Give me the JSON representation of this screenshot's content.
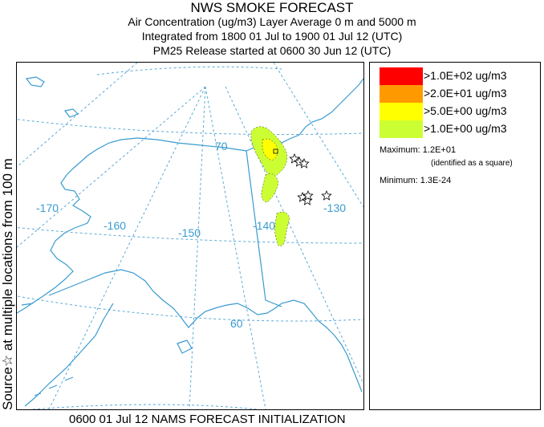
{
  "header": {
    "title": "NWS SMOKE FORECAST",
    "line1": "Air Concentration (ug/m3) Layer Average    0 m and  5000 m",
    "line2": "Integrated from 1800 01 Jul to 1900 01 Jul 12 (UTC)",
    "line3": "PM25 Release started at 0600 30 Jun 12 (UTC)"
  },
  "side_label": "Source☆   at multiple locations     from   100 m",
  "footer": "0600 01 Jul 12 NAMS FORECAST INITIALIZATION",
  "map": {
    "lon_labels": [
      "-170",
      "-160",
      "-150",
      "-140",
      "-130"
    ],
    "lat_labels": [
      "70",
      "60"
    ],
    "colors": {
      "coast": "#3a9bcf",
      "grid": "#5aaad8",
      "border": "#3a9bcf"
    },
    "source_icon": "star-outline-icon",
    "max_marker_icon": "square-icon"
  },
  "legend": {
    "items": [
      {
        "label": ">1.0E+02 ug/m3",
        "color": "#ff0000"
      },
      {
        "label": ">2.0E+01 ug/m3",
        "color": "#ff9900"
      },
      {
        "label": ">5.0E+00 ug/m3",
        "color": "#ffff00"
      },
      {
        "label": ">1.0E+00 ug/m3",
        "color": "#ccff33"
      }
    ],
    "maximum": "Maximum: 1.2E+01",
    "max_note": "(identified as a square)",
    "minimum": "Minimum: 1.3E-24"
  }
}
